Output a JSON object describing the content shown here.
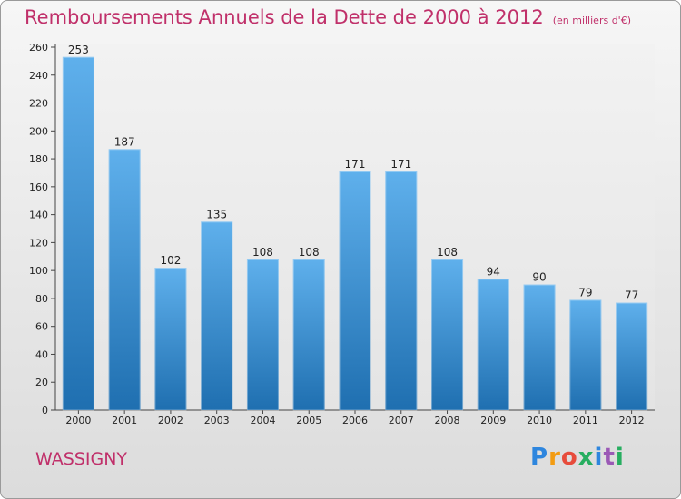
{
  "header": {
    "title": "Remboursements Annuels de la Dette de 2000 à 2012",
    "unit": "(en milliers d'€)"
  },
  "footer": {
    "city": "WASSIGNY",
    "logo": "Proxiti"
  },
  "colors": {
    "title": "#c0306a",
    "bar_top": "#5fb0ec",
    "bar_bottom": "#1f6fb0"
  },
  "chart_data": {
    "type": "bar",
    "title": "Remboursements Annuels de la Dette de 2000 à 2012",
    "xlabel": "",
    "ylabel": "",
    "categories": [
      "2000",
      "2001",
      "2002",
      "2003",
      "2004",
      "2005",
      "2006",
      "2007",
      "2008",
      "2009",
      "2010",
      "2011",
      "2012"
    ],
    "values": [
      253,
      187,
      102,
      135,
      108,
      108,
      171,
      171,
      108,
      94,
      90,
      79,
      77
    ],
    "ylim": [
      0,
      260
    ],
    "yticks": [
      0,
      20,
      40,
      60,
      80,
      100,
      120,
      140,
      160,
      180,
      200,
      220,
      240,
      260
    ],
    "grid": false,
    "data_labels": true
  }
}
